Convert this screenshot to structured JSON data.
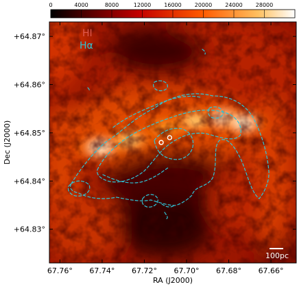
{
  "chart_data": {
    "type": "heatmap",
    "title": "",
    "xlabel": "RA (J2000)",
    "ylabel": "Dec (J2000)",
    "xlim": [
      67.765,
      67.648
    ],
    "ylim": [
      64.823,
      64.873
    ],
    "x_ticks": [
      67.76,
      67.74,
      67.72,
      67.7,
      67.68,
      67.66
    ],
    "x_tick_labels": [
      "67.76°",
      "67.74°",
      "67.72°",
      "67.70°",
      "67.68°",
      "67.66°"
    ],
    "y_ticks": [
      64.87,
      64.86,
      64.85,
      64.84,
      64.83
    ],
    "y_tick_labels": [
      "+64.87°",
      "+64.86°",
      "+64.85°",
      "+64.84°",
      "+64.83°"
    ],
    "colorbar": {
      "range": [
        0,
        32000
      ],
      "ticks": [
        0,
        4000,
        8000,
        12000,
        16000,
        20000,
        24000,
        28000
      ],
      "tick_labels": [
        "0",
        "4000",
        "8000",
        "12000",
        "16000",
        "20000",
        "24000",
        "28000"
      ],
      "colormap": "hot",
      "orientation": "horizontal",
      "placement": "top"
    },
    "legend": {
      "placement": "top-left",
      "entries": [
        {
          "label": "HI",
          "color": "#e05a4e",
          "kind": "image"
        },
        {
          "label": "Hα",
          "color": "#2ec4d6",
          "kind": "dashed-contour"
        }
      ]
    },
    "scale_bar": {
      "label": "100pc"
    },
    "grid": false,
    "hi_peaks": [
      {
        "ra": 67.741,
        "dec": 64.847,
        "level": 0.95
      },
      {
        "ra": 67.727,
        "dec": 64.8485,
        "level": 0.9
      },
      {
        "ra": 67.71,
        "dec": 64.851,
        "level": 0.75
      },
      {
        "ra": 67.696,
        "dec": 64.8525,
        "level": 0.9
      },
      {
        "ra": 67.682,
        "dec": 64.853,
        "level": 0.95
      },
      {
        "ra": 67.673,
        "dec": 64.852,
        "level": 0.95
      }
    ],
    "markers": [
      {
        "ra": 67.708,
        "dec": 64.849,
        "symbol": "open-circle"
      },
      {
        "ra": 67.712,
        "dec": 64.848,
        "symbol": "open-circle"
      }
    ]
  }
}
